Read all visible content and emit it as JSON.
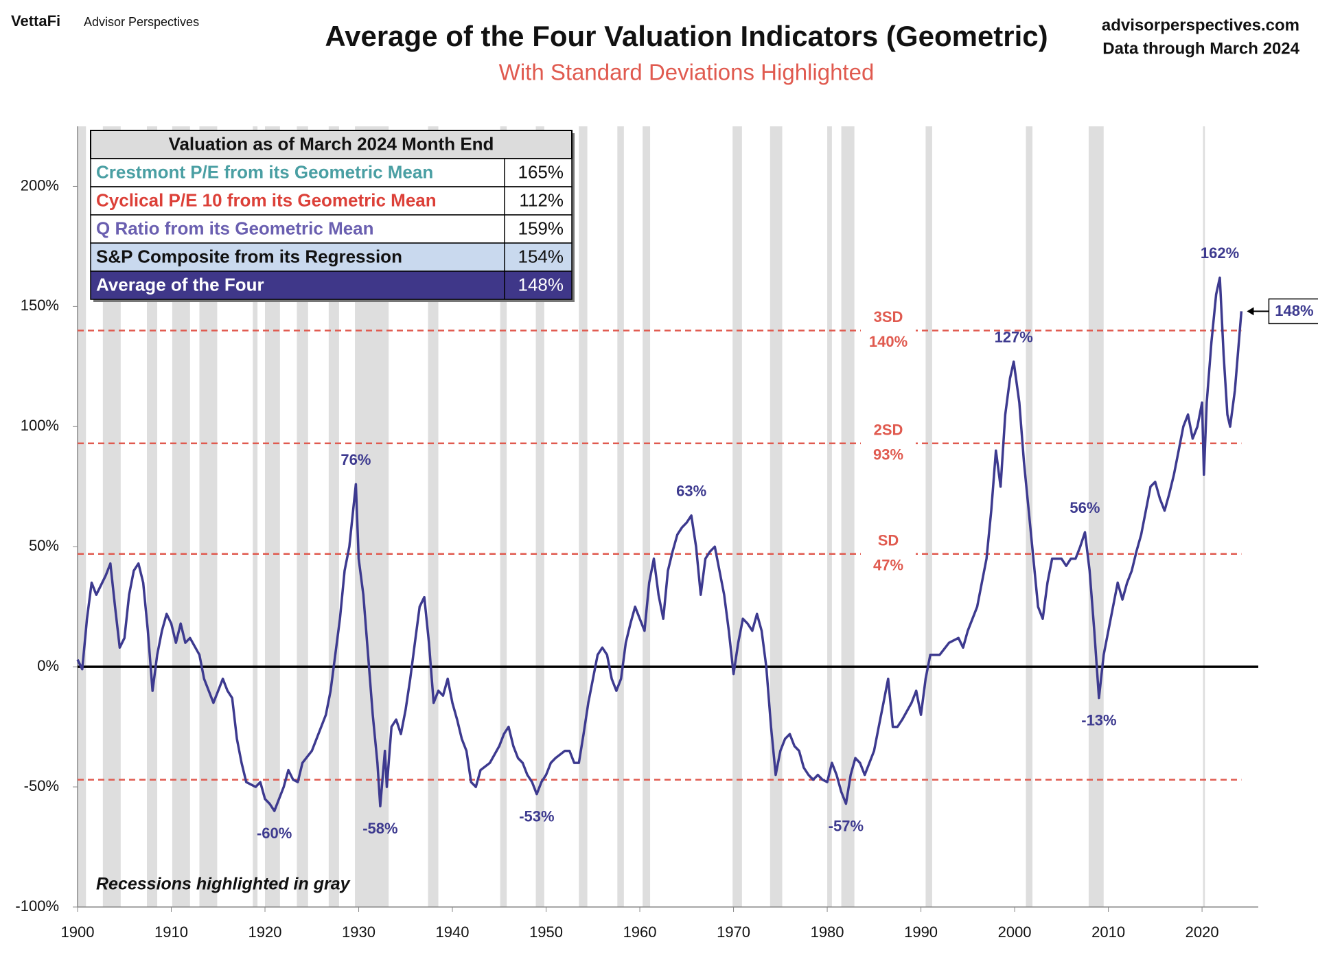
{
  "header": {
    "brand": "VettaFi",
    "brand_sub": "Advisor Perspectives",
    "site": "advisorperspectives.com",
    "data_note": "Data through March 2024"
  },
  "table": {
    "title": "Valuation as of March 2024 Month End",
    "rows": [
      {
        "label": "Crestmont P/E from its Geometric Mean",
        "value": "165%",
        "color": "#4a9fa3",
        "background": "#ffffff"
      },
      {
        "label": "Cyclical P/E 10 from its Geometric Mean",
        "value": "112%",
        "color": "#dc4038",
        "background": "#ffffff"
      },
      {
        "label": "Q Ratio from its Geometric Mean",
        "value": "159%",
        "color": "#6a5fb0",
        "background": "#ffffff"
      },
      {
        "label": "S&P Composite from its Regression",
        "value": "154%",
        "color": "#111111",
        "background": "#c9d9ee"
      },
      {
        "label": "Average of the Four",
        "value": "148%",
        "color": "#ffffff",
        "background": "#3f3789"
      }
    ]
  },
  "chart_data": {
    "type": "line",
    "title": "Average of the Four Valuation Indicators (Geometric)",
    "subtitle": "With Standard Deviations Highlighted",
    "note": "Recessions highlighted  in gray",
    "color": "#3d3a8f",
    "xlim": [
      1900,
      2026
    ],
    "xticks": [
      1900,
      1910,
      1920,
      1930,
      1940,
      1950,
      1960,
      1970,
      1980,
      1990,
      2000,
      2010,
      2020
    ],
    "ylim": [
      -100,
      225
    ],
    "yticks": [
      {
        "value": -100,
        "label": "-100%"
      },
      {
        "value": -50,
        "label": "-50%"
      },
      {
        "value": 0,
        "label": "0%"
      },
      {
        "value": 50,
        "label": "50%"
      },
      {
        "value": 100,
        "label": "100%"
      },
      {
        "value": 150,
        "label": "150%"
      },
      {
        "value": 200,
        "label": "200%"
      }
    ],
    "recession_color": "#dedede",
    "recessions": [
      [
        1900,
        1900.9
      ],
      [
        1902.7,
        1904.6
      ],
      [
        1907.4,
        1908.5
      ],
      [
        1910.1,
        1912.0
      ],
      [
        1913.0,
        1914.9
      ],
      [
        1918.7,
        1919.2
      ],
      [
        1920.0,
        1921.6
      ],
      [
        1923.4,
        1924.6
      ],
      [
        1926.8,
        1927.9
      ],
      [
        1929.6,
        1933.2
      ],
      [
        1937.4,
        1938.5
      ],
      [
        1945.1,
        1945.8
      ],
      [
        1948.9,
        1949.8
      ],
      [
        1953.5,
        1954.4
      ],
      [
        1957.6,
        1958.3
      ],
      [
        1960.3,
        1961.1
      ],
      [
        1969.9,
        1970.9
      ],
      [
        1973.9,
        1975.2
      ],
      [
        1980.0,
        1980.5
      ],
      [
        1981.5,
        1982.9
      ],
      [
        1990.5,
        1991.2
      ],
      [
        2001.2,
        2001.9
      ],
      [
        2007.9,
        2009.5
      ],
      [
        2020.1,
        2020.3
      ]
    ],
    "reference_color": "#e05a4f",
    "reference_lines": [
      {
        "label": "3SD",
        "value_label": "140%",
        "value": 140
      },
      {
        "label": "2SD",
        "value_label": "93%",
        "value": 93
      },
      {
        "label": "SD",
        "value_label": "47%",
        "value": 47
      },
      {
        "value": -47
      }
    ],
    "annotations": [
      {
        "label": "76%",
        "x": 1929.7,
        "value": 76
      },
      {
        "label": "63%",
        "x": 1965.5,
        "value": 63
      },
      {
        "label": "127%",
        "x": 1999.9,
        "value": 127
      },
      {
        "label": "56%",
        "x": 2007.5,
        "value": 56
      },
      {
        "label": "162%",
        "x": 2021.9,
        "value": 162
      },
      {
        "label": "-60%",
        "x": 1921,
        "value": -60
      },
      {
        "label": "-58%",
        "x": 1932.3,
        "value": -58
      },
      {
        "label": "-53%",
        "x": 1949,
        "value": -53
      },
      {
        "label": "-57%",
        "x": 1982,
        "value": -57
      },
      {
        "label": "-13%",
        "x": 2009,
        "value": -13
      }
    ],
    "current": {
      "label": "148%",
      "x": 2024.2,
      "value": 148
    },
    "x": [
      1900,
      1900.5,
      1901,
      1901.5,
      1902,
      1903,
      1903.5,
      1904,
      1904.5,
      1905,
      1905.5,
      1906,
      1906.5,
      1907,
      1907.5,
      1908,
      1908.5,
      1909,
      1909.5,
      1910,
      1910.5,
      1911,
      1911.5,
      1912,
      1913,
      1913.5,
      1914,
      1914.5,
      1915,
      1915.5,
      1916,
      1916.5,
      1917,
      1917.5,
      1918,
      1919,
      1919.5,
      1920,
      1920.5,
      1921,
      1921.5,
      1922,
      1922.5,
      1923,
      1923.5,
      1924,
      1925,
      1925.5,
      1926,
      1926.5,
      1927,
      1927.5,
      1928,
      1928.5,
      1929,
      1929.7,
      1930,
      1930.5,
      1931,
      1931.5,
      1932,
      1932.3,
      1932.8,
      1933,
      1933.5,
      1934,
      1934.5,
      1935,
      1935.5,
      1936,
      1936.5,
      1937,
      1937.5,
      1938,
      1938.5,
      1939,
      1939.5,
      1940,
      1940.5,
      1941,
      1941.5,
      1942,
      1942.5,
      1943,
      1944,
      1945,
      1945.5,
      1946,
      1946.5,
      1947,
      1947.5,
      1948,
      1948.5,
      1949,
      1949.5,
      1950,
      1950.5,
      1951,
      1952,
      1952.5,
      1953,
      1953.5,
      1954,
      1954.5,
      1955,
      1955.5,
      1956,
      1956.5,
      1957,
      1957.5,
      1958,
      1958.5,
      1959,
      1959.5,
      1960,
      1960.5,
      1961,
      1961.5,
      1962,
      1962.5,
      1963,
      1963.5,
      1964,
      1964.5,
      1965,
      1965.5,
      1966,
      1966.5,
      1967,
      1967.5,
      1968,
      1968.5,
      1969,
      1969.5,
      1970,
      1970.5,
      1971,
      1971.5,
      1972,
      1972.5,
      1973,
      1973.5,
      1974,
      1974.5,
      1975,
      1975.5,
      1976,
      1976.5,
      1977,
      1977.5,
      1978,
      1978.5,
      1979,
      1979.5,
      1980,
      1980.5,
      1981,
      1981.5,
      1982,
      1982.5,
      1983,
      1983.5,
      1984,
      1984.5,
      1985,
      1985.5,
      1986,
      1986.5,
      1987,
      1987.5,
      1988,
      1989,
      1989.5,
      1990,
      1990.5,
      1991,
      1992,
      1993,
      1994,
      1994.5,
      1995,
      1996,
      1996.5,
      1997,
      1997.5,
      1998,
      1998.5,
      1999,
      1999.5,
      1999.9,
      2000.5,
      2001,
      2001.5,
      2002,
      2002.5,
      2003,
      2003.5,
      2004,
      2004.5,
      2005,
      2005.5,
      2006,
      2006.5,
      2007,
      2007.5,
      2008,
      2008.5,
      2009,
      2009.5,
      2010,
      2010.5,
      2011,
      2011.5,
      2012,
      2012.5,
      2013,
      2013.5,
      2014,
      2014.5,
      2015,
      2015.5,
      2016,
      2016.5,
      2017,
      2017.5,
      2018,
      2018.5,
      2019,
      2019.5,
      2020,
      2020.2,
      2020.5,
      2021,
      2021.5,
      2021.9,
      2022.3,
      2022.7,
      2023,
      2023.5,
      2024.2
    ],
    "values": [
      3,
      -1,
      20,
      35,
      30,
      38,
      43,
      25,
      8,
      12,
      30,
      40,
      43,
      35,
      15,
      -10,
      5,
      15,
      22,
      18,
      10,
      18,
      10,
      12,
      5,
      -5,
      -10,
      -15,
      -10,
      -5,
      -10,
      -13,
      -30,
      -40,
      -48,
      -50,
      -48,
      -55,
      -57,
      -60,
      -55,
      -50,
      -43,
      -47,
      -48,
      -40,
      -35,
      -30,
      -25,
      -20,
      -10,
      5,
      20,
      40,
      50,
      76,
      45,
      30,
      5,
      -20,
      -40,
      -58,
      -35,
      -50,
      -25,
      -22,
      -28,
      -18,
      -5,
      10,
      25,
      29,
      10,
      -15,
      -10,
      -12,
      -5,
      -15,
      -22,
      -30,
      -35,
      -48,
      -50,
      -43,
      -40,
      -33,
      -28,
      -25,
      -33,
      -38,
      -40,
      -45,
      -48,
      -53,
      -48,
      -45,
      -40,
      -38,
      -35,
      -35,
      -40,
      -40,
      -28,
      -15,
      -5,
      5,
      8,
      5,
      -5,
      -10,
      -5,
      10,
      18,
      25,
      20,
      15,
      35,
      45,
      30,
      20,
      40,
      48,
      55,
      58,
      60,
      63,
      50,
      30,
      45,
      48,
      50,
      40,
      30,
      15,
      -3,
      10,
      20,
      18,
      15,
      22,
      15,
      0,
      -25,
      -45,
      -35,
      -30,
      -28,
      -33,
      -35,
      -42,
      -45,
      -47,
      -45,
      -47,
      -48,
      -40,
      -45,
      -52,
      -57,
      -45,
      -38,
      -40,
      -45,
      -40,
      -35,
      -25,
      -15,
      -5,
      -25,
      -25,
      -22,
      -15,
      -10,
      -20,
      -5,
      5,
      5,
      10,
      12,
      8,
      15,
      25,
      35,
      45,
      65,
      90,
      75,
      105,
      120,
      127,
      110,
      85,
      65,
      45,
      25,
      20,
      35,
      45,
      45,
      45,
      42,
      45,
      45,
      50,
      56,
      40,
      15,
      -13,
      5,
      15,
      25,
      35,
      28,
      35,
      40,
      48,
      55,
      65,
      75,
      77,
      70,
      65,
      72,
      80,
      90,
      100,
      105,
      95,
      100,
      110,
      80,
      110,
      135,
      155,
      162,
      130,
      105,
      100,
      115,
      148
    ]
  }
}
